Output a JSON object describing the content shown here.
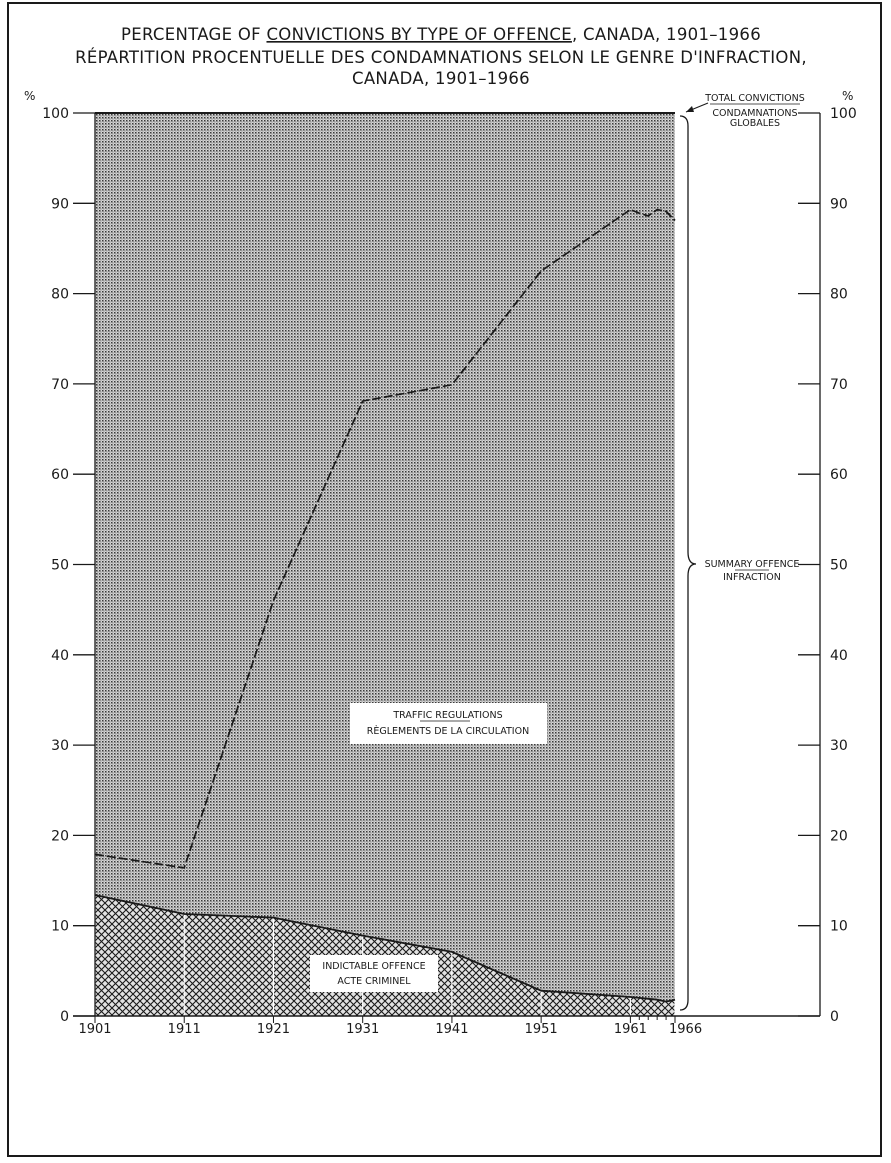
{
  "title": {
    "line1_pre": "PERCENTAGE OF ",
    "line1_underlined": "CONVICTIONS BY TYPE OF OFFENCE",
    "line1_post": ", CANADA, 1901–1966",
    "line2": "RÉPARTITION PROCENTUELLE DES CONDAMNATIONS SELON LE GENRE D'INFRACTION,",
    "line3": "CANADA, 1901–1966"
  },
  "axis": {
    "left_unit": "%",
    "right_unit": "%"
  },
  "labels": {
    "total_convictions_en": "TOTAL CONVICTIONS",
    "total_convictions_fr_1": "CONDAMNATIONS",
    "total_convictions_fr_2": "GLOBALES",
    "summary_en": "SUMMARY OFFENCE",
    "summary_fr": "INFRACTION",
    "traffic_en": "TRAFFIC REGULATIONS",
    "traffic_fr": "RÈGLEMENTS DE LA CIRCULATION",
    "indictable_en": "INDICTABLE OFFENCE",
    "indictable_fr": "ACTE CRIMINEL"
  },
  "colors": {
    "ink": "#1a1a1a",
    "summary_fill": "#a9a9a9",
    "indictable_fill": "#6f6f6f"
  },
  "chart_data": {
    "type": "area",
    "y_ticks": [
      0,
      10,
      20,
      30,
      40,
      50,
      60,
      70,
      80,
      90,
      100
    ],
    "x_ticks": [
      1901,
      1911,
      1921,
      1931,
      1941,
      1951,
      1961,
      1966
    ],
    "xlim": [
      1901,
      1966
    ],
    "ylim": [
      0,
      100
    ],
    "grid": false,
    "series": [
      {
        "name": "INDICTABLE OFFENCE",
        "style": "crosshatch area",
        "x": [
          1901,
          1911,
          1921,
          1931,
          1941,
          1951,
          1961,
          1962,
          1963,
          1964,
          1965,
          1966
        ],
        "values": [
          13.4,
          11.3,
          10.9,
          8.9,
          7.1,
          2.8,
          2.1,
          2.0,
          1.9,
          1.8,
          1.6,
          1.8
        ]
      },
      {
        "name": "TRAFFIC REGULATIONS",
        "style": "dashed cumulative line",
        "x": [
          1901,
          1911,
          1921,
          1931,
          1941,
          1951,
          1961,
          1962,
          1963,
          1964,
          1965,
          1966
        ],
        "values": [
          17.9,
          16.4,
          46.0,
          68.1,
          69.9,
          82.5,
          89.3,
          88.9,
          88.6,
          89.3,
          89.1,
          88.1
        ]
      },
      {
        "name": "TOTAL CONVICTIONS",
        "style": "top boundary",
        "x": [
          1901,
          1966
        ],
        "values": [
          100,
          100
        ]
      }
    ]
  }
}
